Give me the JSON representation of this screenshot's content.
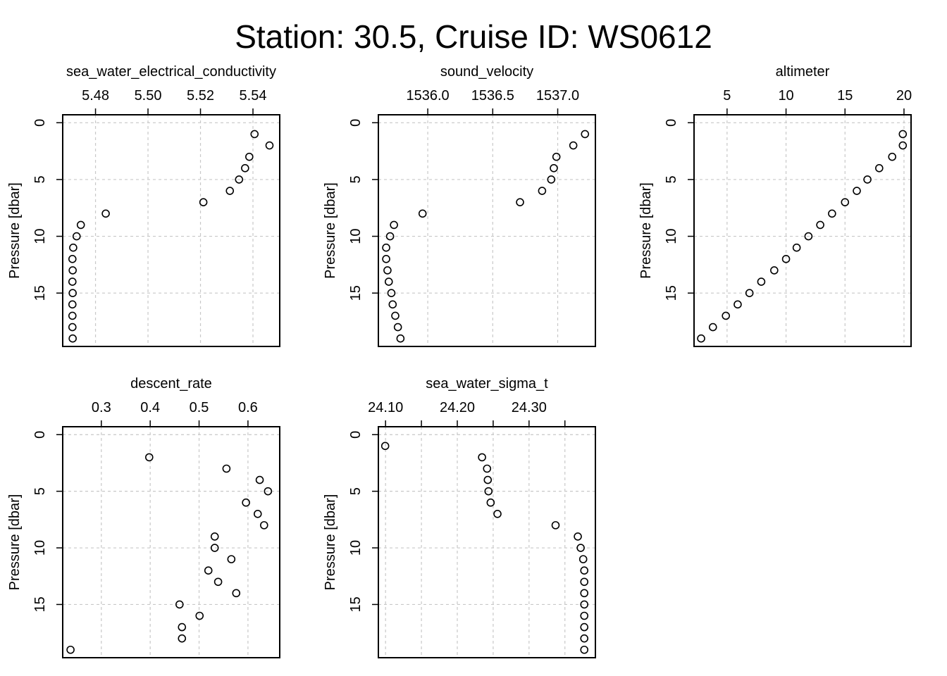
{
  "figure": {
    "title": "Station: 30.5, Cruise ID: WS0612"
  },
  "chart_data": [
    {
      "type": "scatter",
      "title": "sea_water_electrical_conductivity",
      "ylabel": "Pressure [dbar]",
      "xlim": [
        5.4675,
        5.5502
      ],
      "ylim": [
        19.7,
        -0.7
      ],
      "xticks": [
        5.48,
        5.5,
        5.52,
        5.54
      ],
      "xtick_labels": [
        "5.48",
        "5.50",
        "5.52",
        "5.54"
      ],
      "yticks": [
        0,
        5,
        10,
        15
      ],
      "ytick_labels": [
        "0",
        "5",
        "10",
        "15"
      ],
      "grid": true,
      "x": [
        5.5406,
        5.5463,
        5.5386,
        5.537,
        5.5347,
        5.5312,
        5.5211,
        5.4839,
        5.4744,
        5.4728,
        5.4715,
        5.4712,
        5.4713,
        5.4712,
        5.4713,
        5.4712,
        5.4712,
        5.4712,
        5.4713
      ],
      "y": [
        1,
        2,
        3,
        4,
        5,
        6,
        7,
        8,
        9,
        10,
        11,
        12,
        13,
        14,
        15,
        16,
        17,
        18,
        19
      ]
    },
    {
      "type": "scatter",
      "title": "sound_velocity",
      "ylabel": "Pressure [dbar]",
      "xlim": [
        1535.62,
        1537.29
      ],
      "ylim": [
        19.7,
        -0.7
      ],
      "xticks": [
        1536.0,
        1536.5,
        1537.0
      ],
      "xtick_labels": [
        "1536.0",
        "1536.5",
        "1537.0"
      ],
      "yticks": [
        0,
        5,
        10,
        15
      ],
      "ytick_labels": [
        "0",
        "5",
        "10",
        "15"
      ],
      "grid": true,
      "x": [
        1537.21,
        1537.12,
        1536.99,
        1536.97,
        1536.95,
        1536.88,
        1536.71,
        1535.96,
        1535.74,
        1535.71,
        1535.68,
        1535.68,
        1535.69,
        1535.7,
        1535.72,
        1535.73,
        1535.75,
        1535.77,
        1535.79
      ],
      "y": [
        1,
        2,
        3,
        4,
        5,
        6,
        7,
        8,
        9,
        10,
        11,
        12,
        13,
        14,
        15,
        16,
        17,
        18,
        19
      ]
    },
    {
      "type": "scatter",
      "title": "altimeter",
      "ylabel": "Pressure [dbar]",
      "xlim": [
        2.2,
        20.6
      ],
      "ylim": [
        19.7,
        -0.7
      ],
      "xticks": [
        5,
        10,
        15,
        20
      ],
      "xtick_labels": [
        "5",
        "10",
        "15",
        "20"
      ],
      "yticks": [
        0,
        5,
        10,
        15
      ],
      "ytick_labels": [
        "0",
        "5",
        "10",
        "15"
      ],
      "grid": true,
      "x": [
        19.9,
        19.9,
        19.0,
        17.9,
        16.9,
        16.0,
        15.0,
        13.9,
        12.9,
        11.9,
        10.9,
        10.0,
        9.0,
        7.9,
        6.9,
        5.9,
        4.9,
        3.8,
        2.8
      ],
      "y": [
        1,
        2,
        3,
        4,
        5,
        6,
        7,
        8,
        9,
        10,
        11,
        12,
        13,
        14,
        15,
        16,
        17,
        18,
        19
      ]
    },
    {
      "type": "scatter",
      "title": "descent_rate",
      "ylabel": "Pressure [dbar]",
      "xlim": [
        0.221,
        0.665
      ],
      "ylim": [
        19.7,
        -0.7
      ],
      "xticks": [
        0.3,
        0.4,
        0.5,
        0.6
      ],
      "xtick_labels": [
        "0.3",
        "0.4",
        "0.5",
        "0.6"
      ],
      "yticks": [
        0,
        5,
        10,
        15
      ],
      "ytick_labels": [
        "0",
        "5",
        "10",
        "15"
      ],
      "grid": true,
      "x": [
        0.398,
        0.556,
        0.624,
        0.641,
        0.596,
        0.62,
        0.633,
        0.532,
        0.532,
        0.566,
        0.519,
        0.539,
        0.576,
        0.46,
        0.501,
        0.465,
        0.465,
        0.237
      ],
      "y": [
        2,
        3,
        4,
        5,
        6,
        7,
        8,
        9,
        10,
        11,
        12,
        13,
        14,
        15,
        16,
        17,
        18,
        19
      ]
    },
    {
      "type": "scatter",
      "title": "sea_water_sigma_t",
      "ylabel": "Pressure [dbar]",
      "xlim": [
        24.09,
        24.3925
      ],
      "ylim": [
        19.7,
        -0.7
      ],
      "xticks": [
        24.1,
        24.15,
        24.2,
        24.25,
        24.3,
        24.35
      ],
      "xtick_labels": [
        "24.10",
        "",
        "24.20",
        "",
        "24.30",
        ""
      ],
      "yticks": [
        0,
        5,
        10,
        15
      ],
      "ytick_labels": [
        "0",
        "5",
        "10",
        "15"
      ],
      "grid": true,
      "x": [
        24.0995,
        24.2345,
        24.2415,
        24.2425,
        24.2435,
        24.2465,
        24.256,
        24.337,
        24.368,
        24.372,
        24.3755,
        24.377,
        24.377,
        24.377,
        24.377,
        24.377,
        24.377,
        24.377,
        24.377
      ],
      "y": [
        1,
        2,
        3,
        4,
        5,
        6,
        7,
        8,
        9,
        10,
        11,
        12,
        13,
        14,
        15,
        16,
        17,
        18,
        19
      ]
    }
  ]
}
